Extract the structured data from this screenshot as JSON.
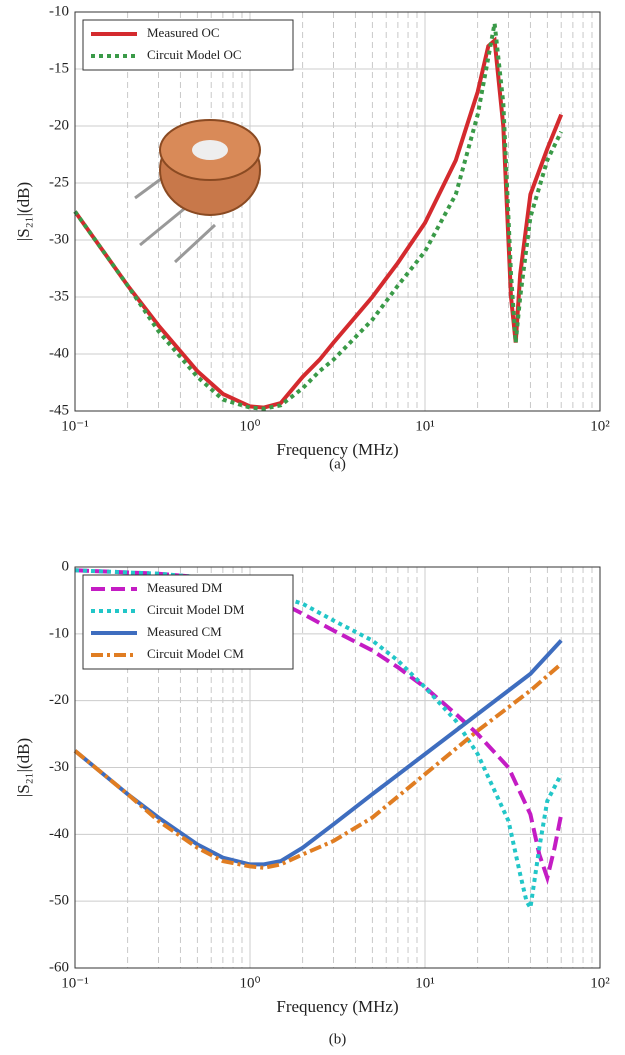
{
  "chart_data": [
    {
      "type": "line",
      "xlabel": "Frequency (MHz)",
      "ylabel": "|S₂₁|(dB)",
      "caption": "(a)",
      "xscale": "log",
      "xlim": [
        0.1,
        100
      ],
      "ylim": [
        -45,
        -10
      ],
      "xticks": [
        {
          "value": 0.1,
          "label": "10⁻¹"
        },
        {
          "value": 1,
          "label": "10⁰"
        },
        {
          "value": 10,
          "label": "10¹"
        },
        {
          "value": 100,
          "label": "10²"
        }
      ],
      "yticks": [
        -45,
        -40,
        -35,
        -30,
        -25,
        -20,
        -15,
        -10
      ],
      "grid": true,
      "xminor_grid": true,
      "legend": "upper left",
      "series": [
        {
          "name": "Measured OC",
          "color": "#d42a2e",
          "style": "solid",
          "x": [
            0.1,
            0.2,
            0.3,
            0.5,
            0.7,
            1,
            1.2,
            1.5,
            2,
            2.5,
            3,
            5,
            7,
            10,
            15,
            20,
            23,
            25,
            28,
            31,
            33,
            35,
            40,
            50,
            60
          ],
          "values": [
            -27.5,
            -34,
            -37.5,
            -41.5,
            -43.5,
            -44.6,
            -44.7,
            -44.3,
            -42,
            -40.5,
            -39,
            -35,
            -32,
            -28.5,
            -23,
            -17,
            -13,
            -12.5,
            -20,
            -35,
            -39,
            -33,
            -26,
            -22,
            -19
          ]
        },
        {
          "name": "Circuit Model OC",
          "color": "#3a9a48",
          "style": "dotted",
          "x": [
            0.1,
            0.2,
            0.3,
            0.5,
            0.7,
            1,
            1.2,
            1.5,
            2,
            2.5,
            3,
            5,
            7,
            10,
            15,
            20,
            23,
            25,
            28,
            31,
            33,
            35,
            40,
            50,
            60
          ],
          "values": [
            -27.5,
            -34,
            -38,
            -42,
            -44,
            -44.7,
            -44.8,
            -44.5,
            -43,
            -41.5,
            -40.5,
            -37,
            -34,
            -31,
            -26,
            -19,
            -14,
            -11,
            -18,
            -33,
            -39,
            -35,
            -28,
            -23,
            -20.5
          ]
        }
      ]
    },
    {
      "type": "line",
      "xlabel": "Frequency (MHz)",
      "ylabel": "|S₂₁|(dB)",
      "caption": "(b)",
      "xscale": "log",
      "xlim": [
        0.1,
        100
      ],
      "ylim": [
        -60,
        0
      ],
      "xticks": [
        {
          "value": 0.1,
          "label": "10⁻¹"
        },
        {
          "value": 1,
          "label": "10⁰"
        },
        {
          "value": 10,
          "label": "10¹"
        },
        {
          "value": 100,
          "label": "10²"
        }
      ],
      "yticks": [
        -60,
        -50,
        -40,
        -30,
        -20,
        -10,
        0
      ],
      "grid": true,
      "xminor_grid": true,
      "legend": "upper left",
      "series": [
        {
          "name": "Measured DM",
          "color": "#c41cc4",
          "style": "dashed",
          "x": [
            0.1,
            0.3,
            0.5,
            1,
            2,
            3,
            5,
            7,
            10,
            15,
            20,
            30,
            40,
            45,
            50,
            55,
            60
          ],
          "values": [
            -0.5,
            -1,
            -1.5,
            -3,
            -7,
            -9.5,
            -12.5,
            -15,
            -18,
            -22,
            -25,
            -30,
            -37,
            -43,
            -46.5,
            -42,
            -37
          ]
        },
        {
          "name": "Circuit Model DM",
          "color": "#22c6c8",
          "style": "dotted",
          "x": [
            0.1,
            0.3,
            0.5,
            1,
            2,
            3,
            5,
            7,
            10,
            15,
            20,
            30,
            35,
            38,
            40,
            45,
            50,
            60
          ],
          "values": [
            -0.5,
            -1,
            -1.5,
            -3,
            -5.5,
            -8,
            -11,
            -14,
            -18,
            -23,
            -28,
            -38,
            -46,
            -50,
            -51,
            -42,
            -35,
            -31
          ]
        },
        {
          "name": "Measured CM",
          "color": "#3e6dbf",
          "style": "solid",
          "x": [
            0.1,
            0.2,
            0.3,
            0.5,
            0.7,
            1,
            1.2,
            1.5,
            2,
            3,
            5,
            10,
            20,
            40,
            60
          ],
          "values": [
            -27.5,
            -34,
            -37.5,
            -41.5,
            -43.5,
            -44.5,
            -44.5,
            -44,
            -42,
            -38.5,
            -34,
            -28,
            -22,
            -16,
            -11
          ]
        },
        {
          "name": "Circuit Model CM",
          "color": "#e07d22",
          "style": "dashdot",
          "x": [
            0.1,
            0.2,
            0.3,
            0.5,
            0.7,
            1,
            1.2,
            1.5,
            2,
            3,
            5,
            10,
            20,
            40,
            60
          ],
          "values": [
            -27.5,
            -34,
            -38,
            -42,
            -44,
            -44.8,
            -45,
            -44.5,
            -43,
            -41,
            -37.5,
            -31,
            -24.5,
            -18.5,
            -14.5
          ]
        }
      ]
    }
  ]
}
